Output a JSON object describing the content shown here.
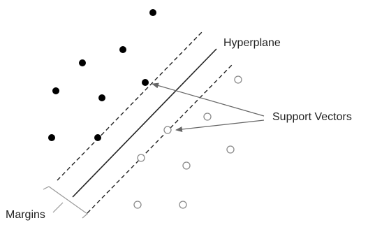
{
  "labels": {
    "hyperplane": "Hyperplane",
    "support_vectors": "Support Vectors",
    "margins": "Margins"
  },
  "colors": {
    "class_a_fill": "#000000",
    "class_b_fill": "#ffffff",
    "line": "#222222",
    "point_stroke": "#8a8a8a",
    "arrow": "#666666"
  }
}
